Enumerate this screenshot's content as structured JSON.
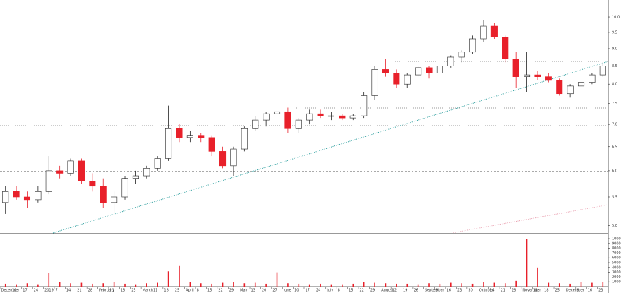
{
  "chart_data": {
    "type": "candlestick",
    "categories": [
      "December",
      "10",
      "17",
      "24",
      "2019",
      "7",
      "14",
      "21",
      "28",
      "February",
      "11",
      "18",
      "25",
      "March",
      "11",
      "18",
      "25",
      "April",
      "8",
      "15",
      "22",
      "29",
      "May",
      "13",
      "20",
      "27",
      "June",
      "10",
      "17",
      "24",
      "July",
      "8",
      "15",
      "22",
      "29",
      "August",
      "12",
      "19",
      "26",
      "September",
      "9",
      "16",
      "23",
      "30",
      "October",
      "14",
      "21",
      "28",
      "November",
      "11",
      "18",
      "25",
      "December",
      "9",
      "16",
      "23"
    ],
    "open": [
      5.4,
      5.6,
      5.5,
      5.45,
      5.6,
      6.0,
      5.95,
      6.2,
      5.8,
      5.7,
      5.4,
      5.5,
      5.85,
      5.9,
      6.05,
      6.25,
      6.9,
      6.7,
      6.75,
      6.7,
      6.4,
      6.1,
      6.45,
      6.9,
      7.1,
      7.25,
      7.3,
      6.9,
      7.1,
      7.25,
      7.2,
      7.2,
      7.15,
      7.2,
      7.7,
      8.4,
      8.3,
      8.0,
      8.25,
      8.45,
      8.3,
      8.5,
      8.75,
      8.9,
      9.3,
      9.7,
      9.35,
      8.7,
      8.2,
      8.25,
      8.2,
      8.1,
      7.75,
      7.95,
      8.05,
      8.25
    ],
    "high": [
      5.7,
      5.7,
      5.6,
      5.7,
      6.3,
      6.1,
      6.25,
      6.25,
      5.95,
      5.85,
      5.6,
      5.9,
      6.0,
      6.1,
      6.3,
      7.45,
      7.0,
      6.85,
      6.8,
      6.75,
      6.5,
      6.5,
      6.95,
      7.2,
      7.3,
      7.4,
      7.4,
      7.15,
      7.35,
      7.35,
      7.3,
      7.25,
      7.25,
      7.8,
      8.5,
      8.7,
      8.4,
      8.3,
      8.5,
      8.5,
      8.6,
      8.8,
      8.95,
      9.4,
      9.9,
      9.8,
      9.4,
      8.9,
      8.9,
      8.35,
      8.3,
      8.15,
      8.0,
      8.15,
      8.3,
      8.6
    ],
    "low": [
      5.2,
      5.45,
      5.3,
      5.4,
      5.55,
      5.85,
      5.9,
      5.75,
      5.6,
      5.3,
      5.2,
      5.45,
      5.75,
      5.85,
      6.0,
      6.2,
      6.6,
      6.6,
      6.6,
      6.3,
      6.05,
      5.9,
      6.4,
      6.85,
      6.95,
      7.1,
      6.8,
      6.8,
      7.0,
      7.15,
      7.1,
      7.1,
      7.1,
      7.15,
      7.6,
      8.2,
      7.9,
      7.9,
      8.2,
      8.15,
      8.25,
      8.45,
      8.6,
      8.85,
      9.2,
      9.3,
      8.6,
      7.9,
      7.8,
      8.1,
      8.05,
      7.7,
      7.65,
      7.9,
      8.0,
      8.2
    ],
    "close": [
      5.6,
      5.5,
      5.45,
      5.6,
      6.0,
      5.95,
      6.2,
      5.8,
      5.7,
      5.4,
      5.5,
      5.85,
      5.9,
      6.05,
      6.25,
      6.9,
      6.7,
      6.75,
      6.7,
      6.4,
      6.1,
      6.45,
      6.9,
      7.1,
      7.25,
      7.3,
      6.9,
      7.1,
      7.25,
      7.2,
      7.2,
      7.15,
      7.2,
      7.7,
      8.4,
      8.3,
      8.0,
      8.25,
      8.45,
      8.3,
      8.5,
      8.75,
      8.9,
      9.3,
      9.7,
      9.35,
      8.7,
      8.2,
      8.25,
      8.2,
      8.1,
      7.75,
      7.95,
      8.05,
      8.25,
      8.5
    ],
    "volume": [
      600,
      500,
      700,
      500,
      2800,
      900,
      700,
      800,
      600,
      700,
      900,
      600,
      500,
      700,
      800,
      3200,
      4300,
      900,
      700,
      600,
      800,
      900,
      700,
      800,
      600,
      3000,
      700,
      600,
      500,
      600,
      500,
      500,
      600,
      900,
      800,
      700,
      600,
      600,
      500,
      700,
      600,
      800,
      700,
      600,
      900,
      800,
      700,
      1200,
      10000,
      4000,
      800,
      700,
      600,
      900,
      800,
      1000
    ],
    "up_color": "#ffffff",
    "down_color": "#e8202a",
    "volume_color": "#e8202a",
    "log_scale": true,
    "ylim": [
      4.88,
      10.58
    ],
    "yticks": [
      {
        "value": 5,
        "label": "5.0"
      },
      {
        "value": 5.5,
        "label": "5.5"
      },
      {
        "value": 6,
        "label": "6.0"
      },
      {
        "value": 6.5,
        "label": "6.5"
      },
      {
        "value": 7,
        "label": "7.0"
      },
      {
        "value": 7.5,
        "label": "7.5"
      },
      {
        "value": 8,
        "label": "8.0"
      },
      {
        "value": 8.5,
        "label": "8.5"
      },
      {
        "value": 9,
        "label": "9.0"
      },
      {
        "value": 9.5,
        "label": "9.5"
      },
      {
        "value": 10,
        "label": "10.0"
      }
    ],
    "y2lim": [
      0,
      10300
    ],
    "y2ticks": [
      1000,
      2000,
      3000,
      4000,
      5000,
      6000,
      7000,
      8000,
      9000,
      10000
    ]
  }
}
